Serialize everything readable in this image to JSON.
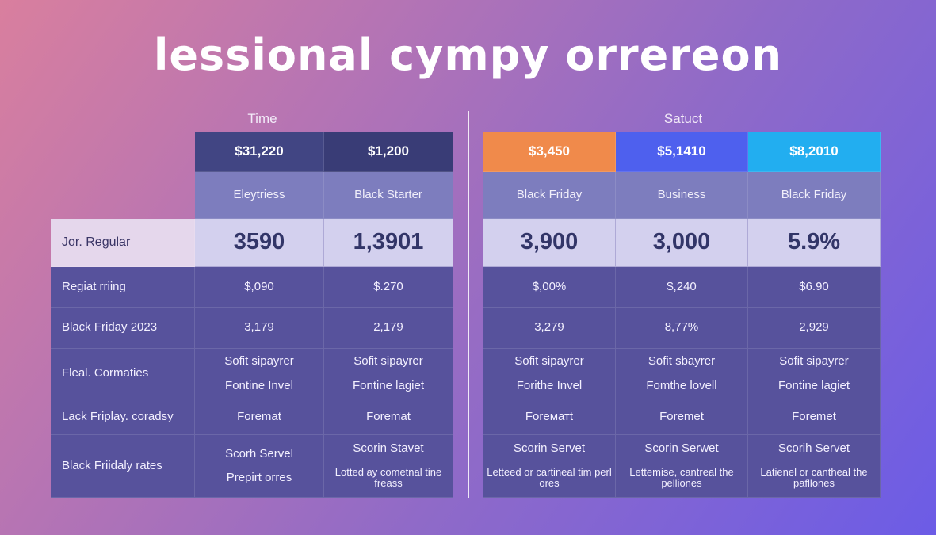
{
  "title": "lessional cympy orrereon",
  "left": {
    "group_label": "Time",
    "columns": [
      {
        "price": "$31,220",
        "name": "Eleytriess",
        "headline": "3590",
        "header_color": "#414583"
      },
      {
        "price": "$1,200",
        "name": "Black Starter",
        "headline": "1,3901",
        "header_color": "#393c76"
      }
    ],
    "rows": [
      {
        "label": "Jor. Regular"
      },
      {
        "label": "Regiat rriing",
        "values": [
          [
            "$,090"
          ],
          [
            "$.270"
          ]
        ]
      },
      {
        "label": "Black Friday 2023",
        "values": [
          [
            "3,179"
          ],
          [
            "2,179"
          ]
        ]
      },
      {
        "label": "Fleal. Cormaties",
        "values": [
          [
            "Sofit sipayrer",
            "Fontine Invel"
          ],
          [
            "Sofit sipayrer",
            "Fontine lagiet"
          ]
        ]
      },
      {
        "label": "Lack Friplay. coradsy",
        "values": [
          [
            "Foremat"
          ],
          [
            "Foremat"
          ]
        ]
      },
      {
        "label": "Black Friidaly rates",
        "values": [
          [
            "Scorh Servel",
            "Prepirt orres"
          ],
          [
            "Scorin Stavet",
            "Lotted ay cometnal tine freass"
          ]
        ]
      }
    ]
  },
  "right": {
    "group_label": "Satuct",
    "columns": [
      {
        "price": "$3,450",
        "name": "Black Friday",
        "headline": "3,900",
        "header_color": "#f08a4b"
      },
      {
        "price": "$5,1410",
        "name": "Business",
        "headline": "3,000",
        "header_color": "#4e60ee"
      },
      {
        "price": "$8,2010",
        "name": "Black Friday",
        "headline": "5.9%",
        "header_color": "#22aef0"
      }
    ],
    "rows": [
      {
        "values": [
          [
            "$,00%"
          ],
          [
            "$,240"
          ],
          [
            "$6.90"
          ]
        ]
      },
      {
        "values": [
          [
            "3,279"
          ],
          [
            "8,77%"
          ],
          [
            "2,929"
          ]
        ]
      },
      {
        "values": [
          [
            "Sofit sipayrer",
            "Forithe Invel"
          ],
          [
            "Sofit sbayrer",
            "Fomthe lovell"
          ],
          [
            "Sofit sipayrer",
            "Fontine lagiet"
          ]
        ]
      },
      {
        "values": [
          [
            "Foreматt"
          ],
          [
            "Foremet"
          ],
          [
            "Foremet"
          ]
        ]
      },
      {
        "values": [
          [
            "Scorin Servet",
            "Letteed or cartineal tim perl ores"
          ],
          [
            "Scorin Serwet",
            "Lettemise, cantreal the pelliones"
          ],
          [
            "Scorih Servet",
            "Latienel or cantheal the pafllones"
          ]
        ]
      }
    ]
  }
}
